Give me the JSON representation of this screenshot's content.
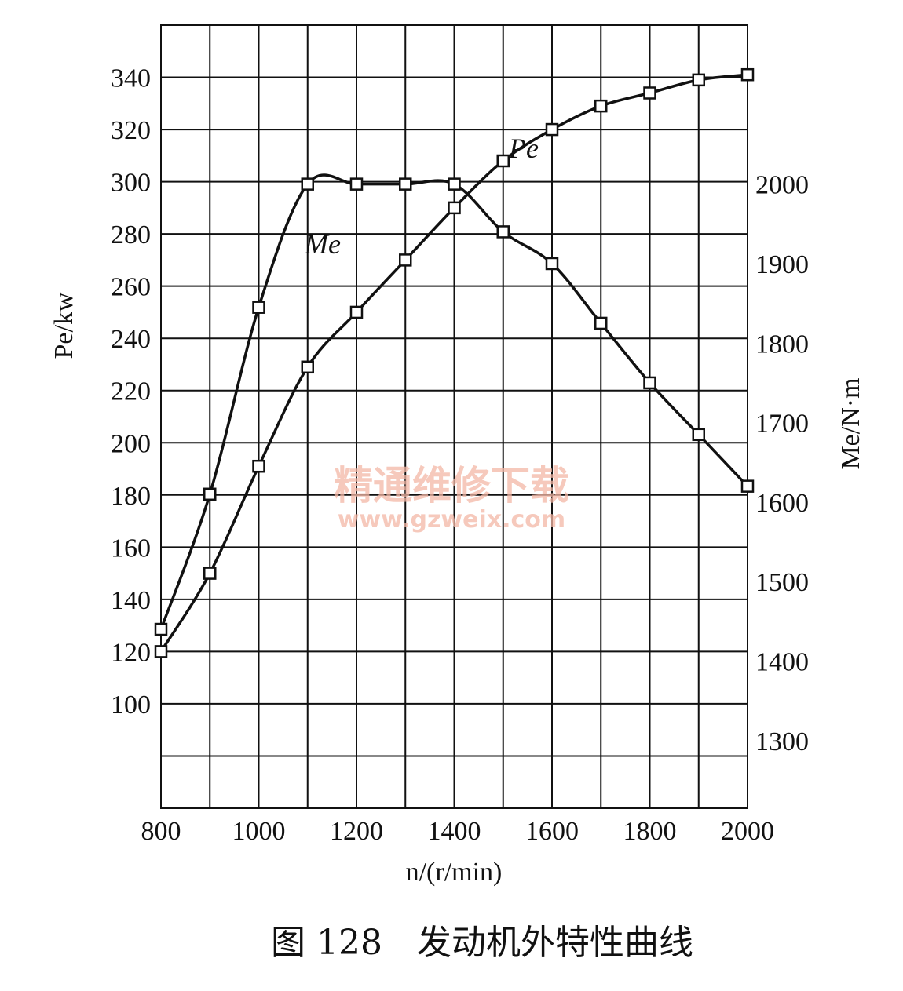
{
  "chart_data": {
    "type": "line",
    "x": [
      800,
      900,
      1000,
      1100,
      1200,
      1300,
      1400,
      1500,
      1600,
      1700,
      1800,
      1900,
      2000
    ],
    "xlabel": "n/(r/min)",
    "ylabel_left": "Pe/kw",
    "ylabel_right": "Me/N·m",
    "x_ticks": [
      "800",
      "1000",
      "1200",
      "1400",
      "1600",
      "1800",
      "2000"
    ],
    "x_tick_values": [
      800,
      1000,
      1200,
      1400,
      1600,
      1800,
      2000
    ],
    "y_left_ticks": [
      "100",
      "120",
      "140",
      "160",
      "180",
      "200",
      "220",
      "240",
      "260",
      "280",
      "300",
      "320",
      "340"
    ],
    "y_left_tick_values": [
      100,
      120,
      140,
      160,
      180,
      200,
      220,
      240,
      260,
      280,
      300,
      320,
      340
    ],
    "y_right_ticks": [
      "1300",
      "1400",
      "1500",
      "1600",
      "1700",
      "1800",
      "1900",
      "2000"
    ],
    "y_right_tick_values": [
      1300,
      1400,
      1500,
      1600,
      1700,
      1800,
      1900,
      2000
    ],
    "xlim": [
      800,
      2000
    ],
    "ylim_left": [
      60,
      360
    ],
    "ylim_right": [
      1215,
      2200
    ],
    "grid": true,
    "series": [
      {
        "name": "Pe",
        "axis": "left",
        "values": [
          120,
          150,
          191,
          229,
          250,
          270,
          290,
          308,
          320,
          329,
          334,
          339,
          341
        ]
      },
      {
        "name": "Me",
        "axis": "right",
        "values": [
          1440,
          1610,
          1845,
          2000,
          2000,
          2000,
          2000,
          1940,
          1900,
          1825,
          1750,
          1685,
          1620
        ]
      }
    ]
  },
  "caption": "图 128　发动机外特性曲线",
  "watermark": {
    "line1": "精通维修下载",
    "line2": "www.gzweix.com"
  }
}
